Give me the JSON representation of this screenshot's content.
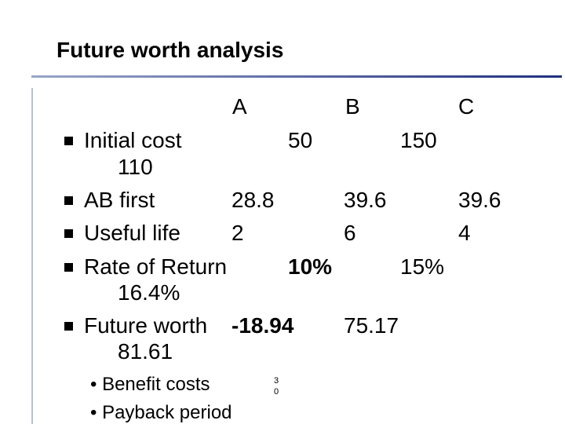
{
  "title": "Future worth analysis",
  "table": {
    "header": [
      "A",
      "B",
      "C"
    ],
    "rows": [
      {
        "label": "Initial cost",
        "values": [
          "50",
          "150",
          "110"
        ]
      },
      {
        "label": "AB first",
        "values": [
          "28.8",
          "39.6",
          "39.6"
        ]
      },
      {
        "label": "Useful life",
        "values": [
          "2",
          "6",
          "4"
        ]
      },
      {
        "label": "Rate of Return",
        "values": [
          "10%",
          "15%",
          "16.4%"
        ]
      },
      {
        "label": "Future worth",
        "values": [
          "-18.94",
          "75.17",
          "81.61"
        ]
      }
    ]
  },
  "sub_bullets": [
    "Benefit costs",
    "Payback period"
  ],
  "page_number": "30"
}
